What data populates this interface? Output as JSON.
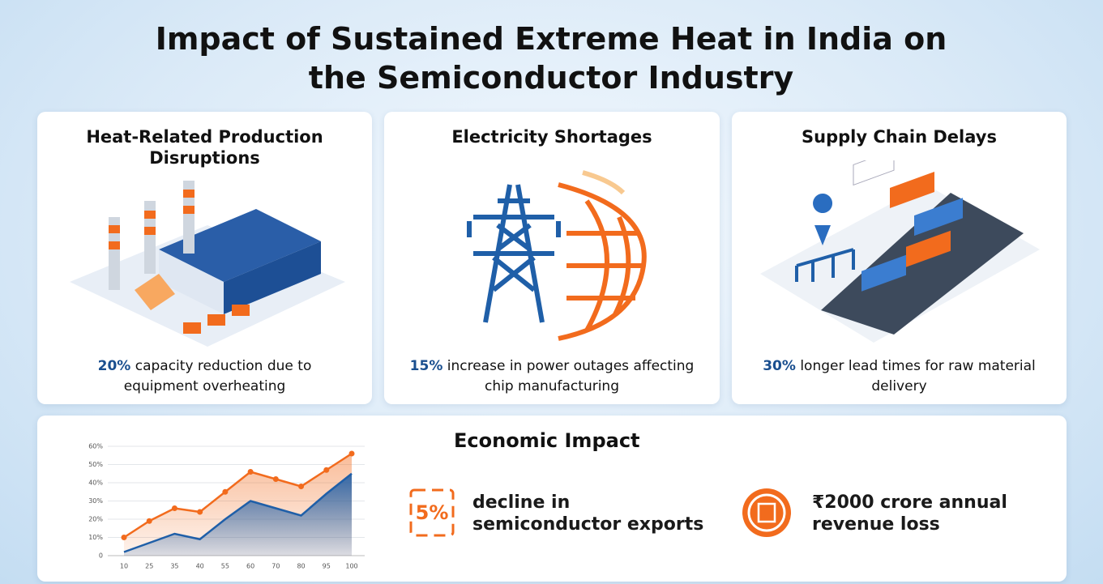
{
  "header": {
    "title": "Impact of Sustained Extreme Heat in India on the Semiconductor Industry"
  },
  "cards": [
    {
      "title": "Heat-Related Production Disruptions",
      "highlight": "20%",
      "text": "capacity reduction due to equipment overheating"
    },
    {
      "title": "Electricity Shortages",
      "highlight": "15%",
      "text": "increase in power outages affecting chip manufacturing"
    },
    {
      "title": "Supply Chain Delays",
      "highlight": "30%",
      "text": "longer lead times for raw material delivery"
    }
  ],
  "economic": {
    "title": "Economic Impact",
    "items": [
      {
        "highlight": "5%",
        "text": "decline in semiconductor exports"
      },
      {
        "highlight": "₹2000",
        "text": "crore annual revenue loss"
      }
    ]
  },
  "chart_data": {
    "type": "area",
    "categories": [
      "10",
      "25",
      "35",
      "40",
      "55",
      "60",
      "70",
      "80",
      "95",
      "100"
    ],
    "series": [
      {
        "color": "#f26b1d",
        "values": [
          10,
          19,
          26,
          24,
          35,
          46,
          42,
          38,
          47,
          56
        ]
      },
      {
        "color": "#1f5fa8",
        "values": [
          2,
          7,
          12,
          9,
          20,
          30,
          26,
          22,
          34,
          45
        ]
      }
    ],
    "ylim": [
      0,
      60
    ],
    "yticks": [
      0,
      {
        "value": 10,
        "label": "10%"
      },
      {
        "value": 20,
        "label": "20%"
      },
      {
        "value": 30,
        "label": "30%"
      },
      {
        "value": 40,
        "label": "40%"
      },
      {
        "value": 50,
        "label": "50%"
      },
      {
        "value": 60,
        "label": "60%"
      }
    ],
    "grid": true
  }
}
